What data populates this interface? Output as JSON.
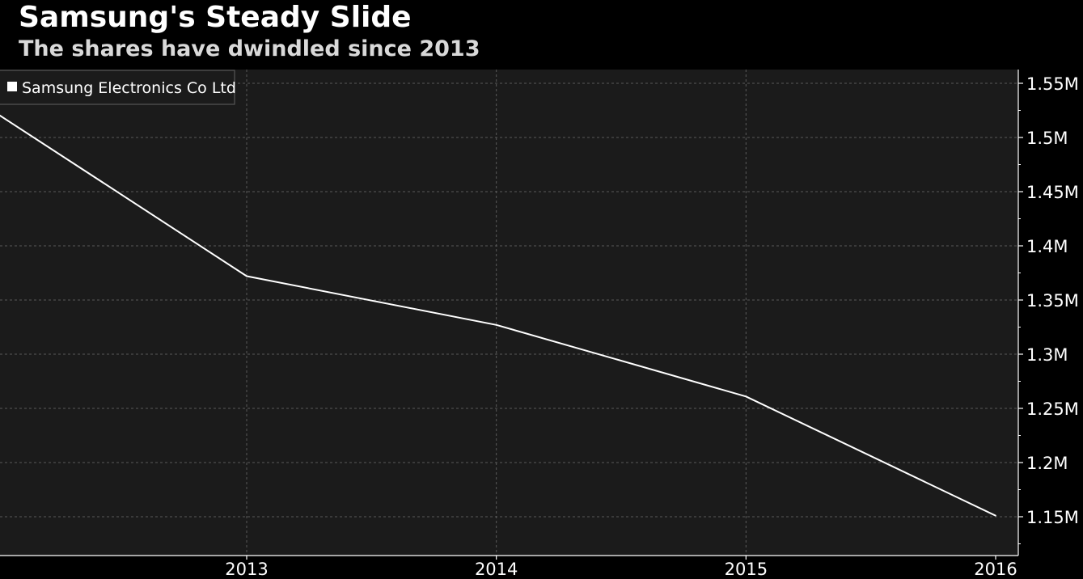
{
  "title": "Samsung's Steady Slide",
  "subtitle": "The shares have dwindled since 2013",
  "colors": {
    "background": "#000000",
    "plot_background": "#1b1b1b",
    "line": "#ffffff",
    "grid": "#5a5a5a",
    "subtitle": "#d9d9d9"
  },
  "chart_data": {
    "type": "line",
    "title": "Samsung's Steady Slide",
    "subtitle": "The shares have dwindled since 2013",
    "xlabel": "",
    "ylabel": "",
    "x_ticks": [
      "2013",
      "2014",
      "2015",
      "2016"
    ],
    "y_ticks": [
      "1.15M",
      "1.2M",
      "1.25M",
      "1.3M",
      "1.35M",
      "1.4M",
      "1.45M",
      "1.5M",
      "1.55M"
    ],
    "ylim": [
      1115000,
      1560000
    ],
    "xlim": [
      2012.0,
      2016.08
    ],
    "grid": true,
    "legend_position": "top-left",
    "series": [
      {
        "name": "Samsung Electronics Co Ltd",
        "x": [
          2012.0,
          2013.0,
          2014.0,
          2015.0,
          2016.0
        ],
        "values": [
          1522000,
          1372000,
          1327000,
          1261000,
          1151000
        ]
      }
    ]
  }
}
